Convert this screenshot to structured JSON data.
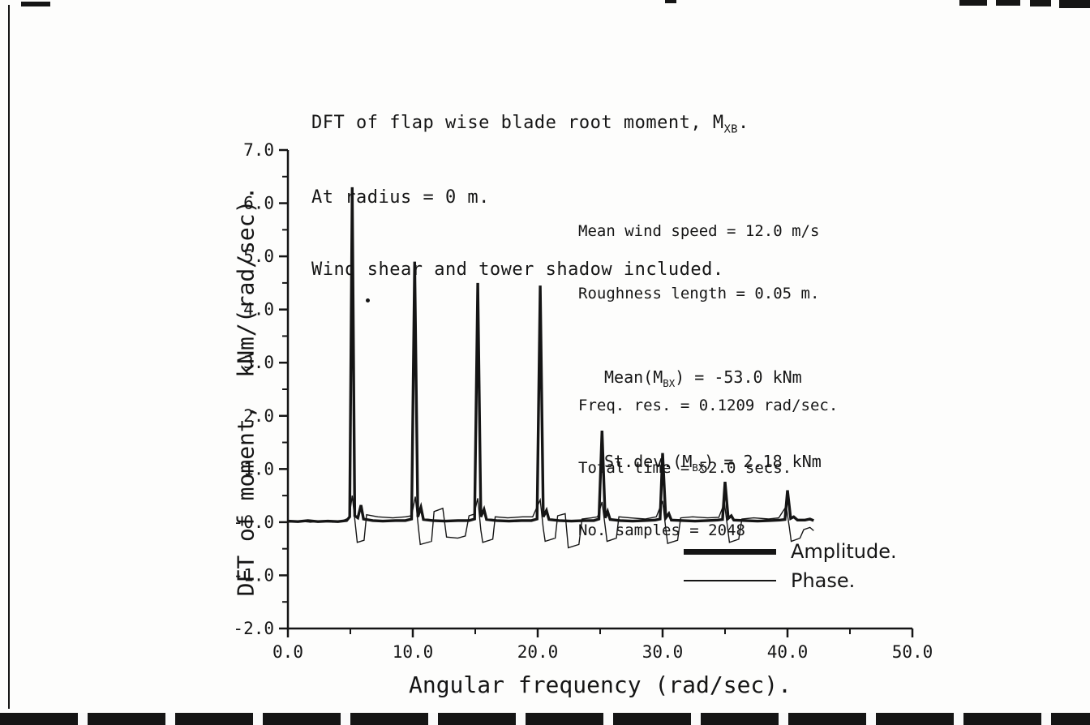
{
  "title": {
    "line1_pre": "DFT of flap wise blade root moment, M",
    "line1_sub": "XB",
    "line1_post": ".",
    "line2": "At radius = 0 m.",
    "line3": "Wind shear and tower shadow included."
  },
  "axes": {
    "ylabel": "DFT of moment,  kNm/(rad/sec).",
    "xlabel": "Angular frequency (rad/sec)."
  },
  "annotations": {
    "wind_speed": "Mean wind speed = 12.0 m/s",
    "roughness": "Roughness length = 0.05 m.",
    "freq_res": "Freq. res. = 0.1209 rad/sec.",
    "total_time": "Total time = 52.0 secs.",
    "samples": "No. samples = 2048",
    "mean_pre": "Mean(M",
    "mean_sub": "BX",
    "mean_post": ") = -53.0 kNm",
    "stdev_pre": "St.dev.(M",
    "stdev_sub": "BX",
    "stdev_post": ") = 2.18 kNm"
  },
  "legend": {
    "amplitude": "Amplitude.",
    "phase": "Phase."
  },
  "chart_data": {
    "type": "line",
    "title": "DFT of flap wise blade root moment, M_XB. At radius = 0 m. Wind shear and tower shadow included.",
    "xlabel": "Angular frequency (rad/sec).",
    "ylabel": "DFT of moment, kNm/(rad/sec).",
    "xlim": [
      0,
      50
    ],
    "ylim": [
      -2,
      7
    ],
    "grid": false,
    "legend_position": "lower right inside plot",
    "x_ticks": [
      0,
      10,
      20,
      30,
      40,
      50
    ],
    "x_tick_labels": [
      "0.0",
      "10.0",
      "20.0",
      "30.0",
      "40.0",
      "50.0"
    ],
    "x_minor_ticks": [
      5,
      15,
      25,
      35,
      45
    ],
    "y_ticks": [
      7,
      6,
      5,
      4,
      3,
      2,
      1,
      0,
      -1,
      -2
    ],
    "y_tick_labels": [
      "7.0",
      "6.0",
      "5.0",
      "4.0",
      "3.0",
      "2.0",
      "1.0",
      "-0.0",
      "-1.0",
      "-2.0"
    ],
    "amplitude_peaks": [
      [
        5.15,
        6.3
      ],
      [
        10.15,
        4.9
      ],
      [
        15.2,
        4.5
      ],
      [
        20.2,
        4.45
      ],
      [
        25.15,
        1.72
      ],
      [
        30.0,
        1.3
      ],
      [
        35.0,
        0.76
      ],
      [
        40.0,
        0.6
      ]
    ],
    "series": [
      {
        "name": "Amplitude.",
        "width_hint": "thick",
        "points": [
          [
            0,
            0.02
          ],
          [
            0.8,
            0.01
          ],
          [
            1.6,
            0.03
          ],
          [
            2.4,
            0.01
          ],
          [
            3.2,
            0.02
          ],
          [
            4.0,
            0.01
          ],
          [
            4.7,
            0.03
          ],
          [
            4.95,
            0.1
          ],
          [
            5.15,
            6.3
          ],
          [
            5.35,
            0.12
          ],
          [
            5.6,
            0.08
          ],
          [
            5.85,
            0.32
          ],
          [
            6.05,
            0.06
          ],
          [
            6.8,
            0.03
          ],
          [
            7.6,
            0.02
          ],
          [
            8.6,
            0.03
          ],
          [
            9.4,
            0.03
          ],
          [
            9.9,
            0.06
          ],
          [
            10.15,
            4.9
          ],
          [
            10.4,
            0.1
          ],
          [
            10.65,
            0.28
          ],
          [
            10.85,
            0.05
          ],
          [
            11.6,
            0.03
          ],
          [
            12.6,
            0.02
          ],
          [
            13.6,
            0.03
          ],
          [
            14.5,
            0.03
          ],
          [
            14.95,
            0.06
          ],
          [
            15.2,
            4.5
          ],
          [
            15.45,
            0.1
          ],
          [
            15.7,
            0.24
          ],
          [
            15.9,
            0.05
          ],
          [
            16.7,
            0.03
          ],
          [
            17.7,
            0.02
          ],
          [
            18.7,
            0.03
          ],
          [
            19.5,
            0.03
          ],
          [
            19.95,
            0.06
          ],
          [
            20.2,
            4.45
          ],
          [
            20.45,
            0.1
          ],
          [
            20.7,
            0.22
          ],
          [
            20.9,
            0.05
          ],
          [
            21.7,
            0.03
          ],
          [
            22.7,
            0.02
          ],
          [
            23.7,
            0.03
          ],
          [
            24.5,
            0.03
          ],
          [
            24.9,
            0.06
          ],
          [
            25.15,
            1.72
          ],
          [
            25.4,
            0.08
          ],
          [
            25.6,
            0.2
          ],
          [
            25.8,
            0.05
          ],
          [
            26.6,
            0.03
          ],
          [
            27.6,
            0.02
          ],
          [
            28.6,
            0.03
          ],
          [
            29.4,
            0.04
          ],
          [
            29.8,
            0.06
          ],
          [
            30.0,
            1.3
          ],
          [
            30.25,
            0.08
          ],
          [
            30.5,
            0.16
          ],
          [
            30.7,
            0.04
          ],
          [
            31.6,
            0.03
          ],
          [
            32.6,
            0.02
          ],
          [
            33.6,
            0.03
          ],
          [
            34.4,
            0.04
          ],
          [
            34.8,
            0.05
          ],
          [
            35.0,
            0.76
          ],
          [
            35.25,
            0.07
          ],
          [
            35.5,
            0.12
          ],
          [
            35.7,
            0.04
          ],
          [
            36.6,
            0.03
          ],
          [
            37.6,
            0.02
          ],
          [
            38.6,
            0.03
          ],
          [
            39.4,
            0.04
          ],
          [
            39.8,
            0.05
          ],
          [
            40.0,
            0.6
          ],
          [
            40.25,
            0.07
          ],
          [
            40.5,
            0.1
          ],
          [
            40.8,
            0.04
          ],
          [
            41.4,
            0.04
          ],
          [
            41.8,
            0.06
          ],
          [
            42.1,
            0.03
          ]
        ]
      },
      {
        "name": "Phase.",
        "width_hint": "thin",
        "points": [
          [
            0,
            0.0
          ],
          [
            0.9,
            0.02
          ],
          [
            1.8,
            0.0
          ],
          [
            2.7,
            0.02
          ],
          [
            3.6,
            0.0
          ],
          [
            4.4,
            0.03
          ],
          [
            4.9,
            0.08
          ],
          [
            5.15,
            0.5
          ],
          [
            5.4,
            -0.05
          ],
          [
            5.55,
            -0.38
          ],
          [
            6.1,
            -0.34
          ],
          [
            6.3,
            0.14
          ],
          [
            7.2,
            0.1
          ],
          [
            8.4,
            0.08
          ],
          [
            9.4,
            0.1
          ],
          [
            9.9,
            0.12
          ],
          [
            10.2,
            0.48
          ],
          [
            10.45,
            -0.1
          ],
          [
            10.6,
            -0.42
          ],
          [
            11.5,
            -0.36
          ],
          [
            11.7,
            0.2
          ],
          [
            12.4,
            0.26
          ],
          [
            12.7,
            -0.28
          ],
          [
            13.6,
            -0.3
          ],
          [
            14.2,
            -0.26
          ],
          [
            14.5,
            0.12
          ],
          [
            14.9,
            0.15
          ],
          [
            15.2,
            0.45
          ],
          [
            15.45,
            -0.15
          ],
          [
            15.6,
            -0.38
          ],
          [
            16.4,
            -0.32
          ],
          [
            16.6,
            0.1
          ],
          [
            17.6,
            0.08
          ],
          [
            18.8,
            0.1
          ],
          [
            19.6,
            0.1
          ],
          [
            20.2,
            0.42
          ],
          [
            20.45,
            -0.12
          ],
          [
            20.6,
            -0.36
          ],
          [
            21.4,
            -0.3
          ],
          [
            21.6,
            0.12
          ],
          [
            22.2,
            0.16
          ],
          [
            22.45,
            -0.48
          ],
          [
            23.3,
            -0.42
          ],
          [
            23.55,
            0.06
          ],
          [
            24.3,
            0.08
          ],
          [
            24.8,
            0.1
          ],
          [
            25.15,
            0.38
          ],
          [
            25.4,
            -0.08
          ],
          [
            25.55,
            -0.36
          ],
          [
            26.3,
            -0.3
          ],
          [
            26.5,
            0.1
          ],
          [
            27.4,
            0.08
          ],
          [
            28.6,
            0.06
          ],
          [
            29.5,
            0.1
          ],
          [
            30.0,
            0.4
          ],
          [
            30.25,
            -0.12
          ],
          [
            30.4,
            -0.4
          ],
          [
            31.2,
            -0.34
          ],
          [
            31.45,
            0.08
          ],
          [
            32.4,
            0.1
          ],
          [
            33.6,
            0.08
          ],
          [
            34.5,
            0.09
          ],
          [
            34.95,
            0.36
          ],
          [
            35.2,
            -0.1
          ],
          [
            35.35,
            -0.38
          ],
          [
            36.1,
            -0.32
          ],
          [
            36.35,
            0.06
          ],
          [
            37.3,
            0.08
          ],
          [
            38.5,
            0.06
          ],
          [
            39.3,
            0.08
          ],
          [
            39.9,
            0.3
          ],
          [
            40.15,
            -0.1
          ],
          [
            40.3,
            -0.36
          ],
          [
            41.0,
            -0.3
          ],
          [
            41.3,
            -0.14
          ],
          [
            41.8,
            -0.1
          ],
          [
            42.1,
            -0.16
          ]
        ]
      }
    ],
    "ink_color": "#151515"
  }
}
